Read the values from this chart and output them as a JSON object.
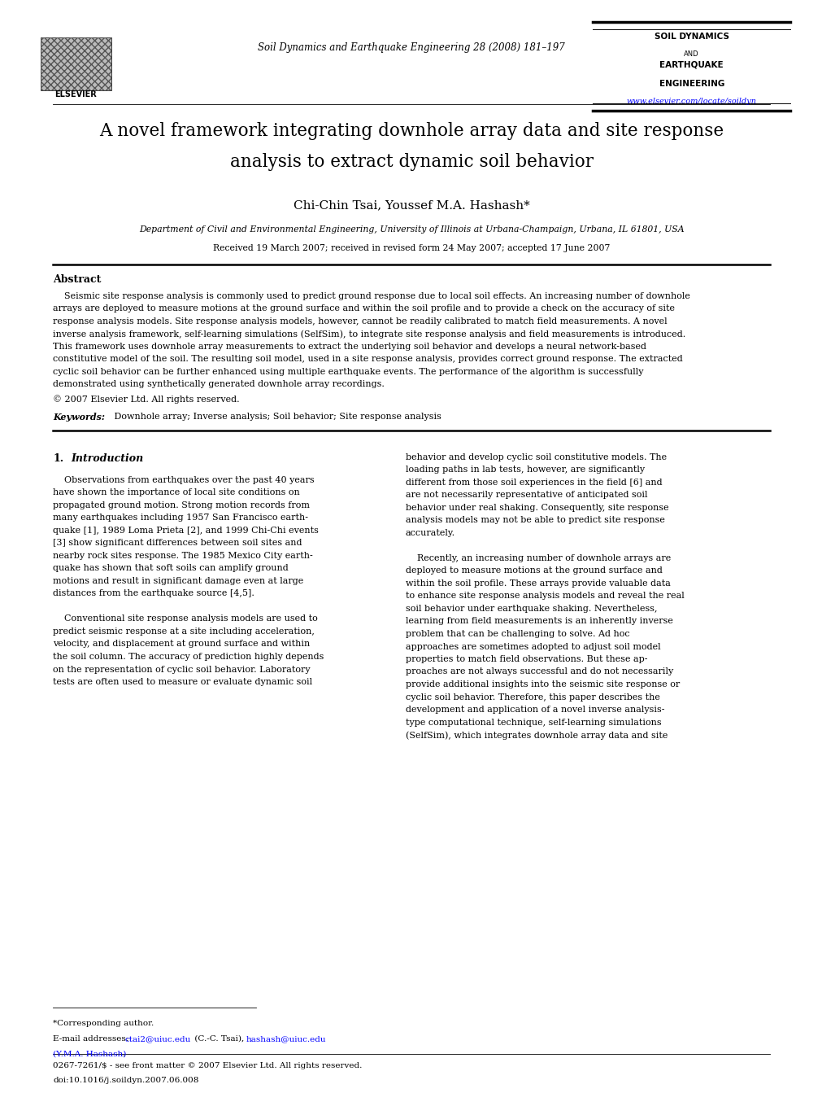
{
  "background_color": "#ffffff",
  "page_width": 9.92,
  "page_height": 13.23,
  "journal_name": "Soil Dynamics and Earthquake Engineering 28 (2008) 181–197",
  "journal_url": "www.elsevier.com/locate/soildyn",
  "title_line1": "A novel framework integrating downhole array data and site response",
  "title_line2": "analysis to extract dynamic soil behavior",
  "authors": "Chi-Chin Tsai, Youssef M.A. Hashash*",
  "affiliation": "Department of Civil and Environmental Engineering, University of Illinois at Urbana-Champaign, Urbana, IL 61801, USA",
  "received": "Received 19 March 2007; received in revised form 24 May 2007; accepted 17 June 2007",
  "abstract_label": "Abstract",
  "abstract_text": "    Seismic site response analysis is commonly used to predict ground response due to local soil effects. An increasing number of downhole\narrays are deployed to measure motions at the ground surface and within the soil profile and to provide a check on the accuracy of site\nresponse analysis models. Site response analysis models, however, cannot be readily calibrated to match field measurements. A novel\ninverse analysis framework, self-learning simulations (SelfSim), to integrate site response analysis and field measurements is introduced.\nThis framework uses downhole array measurements to extract the underlying soil behavior and develops a neural network-based\nconstitutive model of the soil. The resulting soil model, used in a site response analysis, provides correct ground response. The extracted\ncyclic soil behavior can be further enhanced using multiple earthquake events. The performance of the algorithm is successfully\ndemonstrated using synthetically generated downhole array recordings.",
  "copyright": "© 2007 Elsevier Ltd. All rights reserved.",
  "keywords_label": "Keywords:",
  "keywords": " Downhole array; Inverse analysis; Soil behavior; Site response analysis",
  "section1_title": "Introduction",
  "intro_left_lines": [
    "    Observations from earthquakes over the past 40 years",
    "have shown the importance of local site conditions on",
    "propagated ground motion. Strong motion records from",
    "many earthquakes including 1957 San Francisco earth-",
    "quake [1], 1989 Loma Prieta [2], and 1999 Chi-Chi events",
    "[3] show significant differences between soil sites and",
    "nearby rock sites response. The 1985 Mexico City earth-",
    "quake has shown that soft soils can amplify ground",
    "motions and result in significant damage even at large",
    "distances from the earthquake source [4,5].",
    "",
    "    Conventional site response analysis models are used to",
    "predict seismic response at a site including acceleration,",
    "velocity, and displacement at ground surface and within",
    "the soil column. The accuracy of prediction highly depends",
    "on the representation of cyclic soil behavior. Laboratory",
    "tests are often used to measure or evaluate dynamic soil"
  ],
  "intro_right_lines": [
    "behavior and develop cyclic soil constitutive models. The",
    "loading paths in lab tests, however, are significantly",
    "different from those soil experiences in the field [6] and",
    "are not necessarily representative of anticipated soil",
    "behavior under real shaking. Consequently, site response",
    "analysis models may not be able to predict site response",
    "accurately.",
    "",
    "    Recently, an increasing number of downhole arrays are",
    "deployed to measure motions at the ground surface and",
    "within the soil profile. These arrays provide valuable data",
    "to enhance site response analysis models and reveal the real",
    "soil behavior under earthquake shaking. Nevertheless,",
    "learning from field measurements is an inherently inverse",
    "problem that can be challenging to solve. Ad hoc",
    "approaches are sometimes adopted to adjust soil model",
    "properties to match field observations. But these ap-",
    "proaches are not always successful and do not necessarily",
    "provide additional insights into the seismic site response or",
    "cyclic soil behavior. Therefore, this paper describes the",
    "development and application of a novel inverse analysis-",
    "type computational technique, self-learning simulations",
    "(SelfSim), which integrates downhole array data and site"
  ],
  "footnote_star": "*Corresponding author.",
  "footnote_email1": "E-mail addresses: ",
  "footnote_email1_link1": "ctai2@uiuc.edu",
  "footnote_email1_mid": " (C.-C. Tsai), ",
  "footnote_email1_link2": "hashash@uiuc.edu",
  "footnote_email2_link": "(Y.M.A. Hashash)",
  "footnote_email2_end": ".",
  "bottom_line1": "0267-7261/$ - see front matter © 2007 Elsevier Ltd. All rights reserved.",
  "bottom_line2": "doi:10.1016/j.soildyn.2007.06.008"
}
